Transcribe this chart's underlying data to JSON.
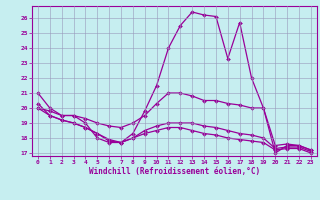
{
  "xlabel": "Windchill (Refroidissement éolien,°C)",
  "background_color": "#c6eef0",
  "grid_color": "#9999bb",
  "line_color": "#990099",
  "xmin": 0,
  "xmax": 23,
  "ymin": 17,
  "ymax": 26.5,
  "yticks": [
    17,
    18,
    19,
    20,
    21,
    22,
    23,
    24,
    25,
    26
  ],
  "xticks": [
    0,
    1,
    2,
    3,
    4,
    5,
    6,
    7,
    8,
    9,
    10,
    11,
    12,
    13,
    14,
    15,
    16,
    17,
    18,
    19,
    20,
    21,
    22,
    23
  ],
  "lines": [
    {
      "x": [
        0,
        1,
        2,
        3,
        4,
        5,
        6,
        7,
        8,
        9,
        10,
        11,
        12,
        13,
        14,
        15,
        16,
        17,
        18,
        19,
        20,
        21,
        22,
        23
      ],
      "y": [
        21.0,
        20.0,
        19.5,
        19.5,
        19.0,
        18.0,
        17.7,
        17.7,
        18.3,
        19.8,
        21.5,
        24.0,
        25.5,
        26.4,
        26.2,
        26.1,
        23.3,
        25.7,
        22.0,
        20.0,
        17.0,
        17.5,
        17.5,
        17.2
      ]
    },
    {
      "x": [
        0,
        1,
        2,
        3,
        4,
        5,
        6,
        7,
        8,
        9,
        10,
        11,
        12,
        13,
        14,
        15,
        16,
        17,
        18,
        19,
        20,
        21,
        22,
        23
      ],
      "y": [
        20.0,
        19.8,
        19.5,
        19.5,
        19.3,
        19.0,
        18.8,
        18.7,
        19.0,
        19.5,
        20.3,
        21.0,
        21.0,
        20.8,
        20.5,
        20.5,
        20.3,
        20.2,
        20.0,
        20.0,
        17.5,
        17.6,
        17.5,
        17.2
      ]
    },
    {
      "x": [
        0,
        1,
        2,
        3,
        4,
        5,
        6,
        7,
        8,
        9,
        10,
        11,
        12,
        13,
        14,
        15,
        16,
        17,
        18,
        19,
        20,
        21,
        22,
        23
      ],
      "y": [
        20.0,
        19.5,
        19.2,
        19.0,
        18.7,
        18.3,
        17.8,
        17.7,
        18.0,
        18.5,
        18.8,
        19.0,
        19.0,
        19.0,
        18.8,
        18.7,
        18.5,
        18.3,
        18.2,
        18.0,
        17.3,
        17.4,
        17.4,
        17.1
      ]
    },
    {
      "x": [
        0,
        1,
        2,
        3,
        4,
        5,
        6,
        7,
        8,
        9,
        10,
        11,
        12,
        13,
        14,
        15,
        16,
        17,
        18,
        19,
        20,
        21,
        22,
        23
      ],
      "y": [
        20.3,
        19.5,
        19.2,
        19.0,
        18.7,
        18.3,
        17.9,
        17.7,
        18.0,
        18.3,
        18.5,
        18.7,
        18.7,
        18.5,
        18.3,
        18.2,
        18.0,
        17.9,
        17.8,
        17.7,
        17.2,
        17.3,
        17.3,
        17.0
      ]
    }
  ]
}
